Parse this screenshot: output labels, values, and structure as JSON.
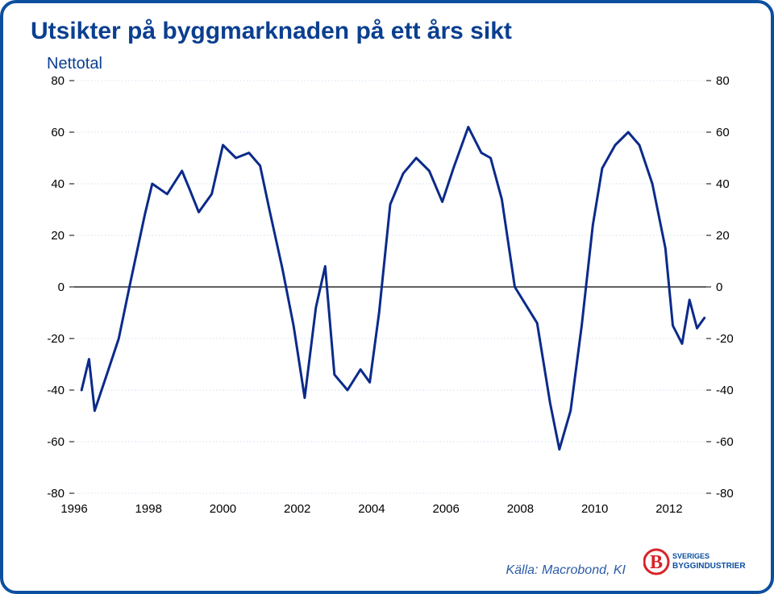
{
  "title": "Utsikter på byggmarknaden på ett års sikt",
  "subtitle": "Nettotal",
  "source": "Källa: Macrobond, KI",
  "logo": {
    "top_text": "SVERIGES",
    "bottom_text": "BYGGINDUSTRIER",
    "b_color": "#d8232a",
    "text_color": "#0b4f9e"
  },
  "chart": {
    "type": "line",
    "ylim": [
      -80,
      80
    ],
    "ytick_step": 20,
    "x_start": 1996,
    "x_end": 2013,
    "xtick_step": 2,
    "background_color": "#ffffff",
    "grid_color": "#c8d8ee",
    "zero_line_color": "#000000",
    "line_color": "#0b2a8a",
    "line_width": 3,
    "series": [
      {
        "x": 1996.2,
        "y": -40
      },
      {
        "x": 1996.4,
        "y": -28
      },
      {
        "x": 1996.55,
        "y": -48
      },
      {
        "x": 1996.9,
        "y": -33
      },
      {
        "x": 1997.2,
        "y": -20
      },
      {
        "x": 1997.5,
        "y": 1
      },
      {
        "x": 1997.9,
        "y": 28
      },
      {
        "x": 1998.1,
        "y": 40
      },
      {
        "x": 1998.5,
        "y": 36
      },
      {
        "x": 1998.9,
        "y": 45
      },
      {
        "x": 1999.1,
        "y": 38
      },
      {
        "x": 1999.35,
        "y": 29
      },
      {
        "x": 1999.7,
        "y": 36
      },
      {
        "x": 2000.0,
        "y": 55
      },
      {
        "x": 2000.35,
        "y": 50
      },
      {
        "x": 2000.7,
        "y": 52
      },
      {
        "x": 2001.0,
        "y": 47
      },
      {
        "x": 2001.25,
        "y": 30
      },
      {
        "x": 2001.6,
        "y": 7
      },
      {
        "x": 2001.9,
        "y": -15
      },
      {
        "x": 2002.2,
        "y": -43
      },
      {
        "x": 2002.5,
        "y": -8
      },
      {
        "x": 2002.75,
        "y": 8
      },
      {
        "x": 2003.0,
        "y": -34
      },
      {
        "x": 2003.35,
        "y": -40
      },
      {
        "x": 2003.7,
        "y": -32
      },
      {
        "x": 2003.95,
        "y": -37
      },
      {
        "x": 2004.2,
        "y": -10
      },
      {
        "x": 2004.5,
        "y": 32
      },
      {
        "x": 2004.85,
        "y": 44
      },
      {
        "x": 2005.2,
        "y": 50
      },
      {
        "x": 2005.55,
        "y": 45
      },
      {
        "x": 2005.9,
        "y": 33
      },
      {
        "x": 2006.2,
        "y": 46
      },
      {
        "x": 2006.6,
        "y": 62
      },
      {
        "x": 2006.95,
        "y": 52
      },
      {
        "x": 2007.2,
        "y": 50
      },
      {
        "x": 2007.5,
        "y": 34
      },
      {
        "x": 2007.85,
        "y": 0
      },
      {
        "x": 2008.15,
        "y": -7
      },
      {
        "x": 2008.45,
        "y": -14
      },
      {
        "x": 2008.8,
        "y": -45
      },
      {
        "x": 2009.05,
        "y": -63
      },
      {
        "x": 2009.35,
        "y": -48
      },
      {
        "x": 2009.65,
        "y": -15
      },
      {
        "x": 2009.95,
        "y": 24
      },
      {
        "x": 2010.2,
        "y": 46
      },
      {
        "x": 2010.55,
        "y": 55
      },
      {
        "x": 2010.9,
        "y": 60
      },
      {
        "x": 2011.2,
        "y": 55
      },
      {
        "x": 2011.55,
        "y": 40
      },
      {
        "x": 2011.9,
        "y": 15
      },
      {
        "x": 2012.1,
        "y": -15
      },
      {
        "x": 2012.35,
        "y": -22
      },
      {
        "x": 2012.55,
        "y": -5
      },
      {
        "x": 2012.75,
        "y": -16
      },
      {
        "x": 2012.95,
        "y": -12
      }
    ]
  }
}
